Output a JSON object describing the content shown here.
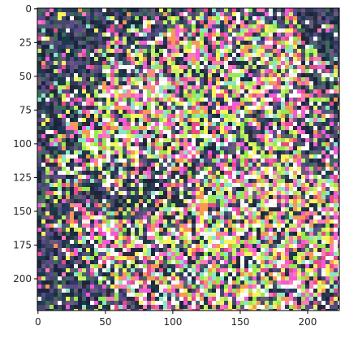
{
  "chart_data": {
    "type": "heatmap",
    "title": "",
    "xlabel": "",
    "ylabel": "",
    "xlim": [
      0,
      223
    ],
    "ylim": [
      223,
      0
    ],
    "image_shape": [
      224,
      224,
      3
    ],
    "colormap": "rgb",
    "content": "noisy rgb image",
    "x_ticks": [
      {
        "value": 0,
        "label": "0"
      },
      {
        "value": 50,
        "label": "50"
      },
      {
        "value": 100,
        "label": "100"
      },
      {
        "value": 150,
        "label": "150"
      },
      {
        "value": 200,
        "label": "200"
      }
    ],
    "y_ticks": [
      {
        "value": 0,
        "label": "0"
      },
      {
        "value": 25,
        "label": "25"
      },
      {
        "value": 50,
        "label": "50"
      },
      {
        "value": 75,
        "label": "75"
      },
      {
        "value": 100,
        "label": "100"
      },
      {
        "value": 125,
        "label": "125"
      },
      {
        "value": 150,
        "label": "150"
      },
      {
        "value": 175,
        "label": "175"
      },
      {
        "value": 200,
        "label": "200"
      }
    ],
    "grid": false,
    "legend": "none"
  },
  "colors": {
    "axis": "#000000",
    "tick_text": "#262626",
    "palette": [
      "#e94fd2",
      "#f4f05a",
      "#8fe04d",
      "#5a8cf0",
      "#f08a4a",
      "#f5f5f5",
      "#1a2240",
      "#3c6a5a",
      "#c73a8a",
      "#7ad0e0"
    ]
  }
}
